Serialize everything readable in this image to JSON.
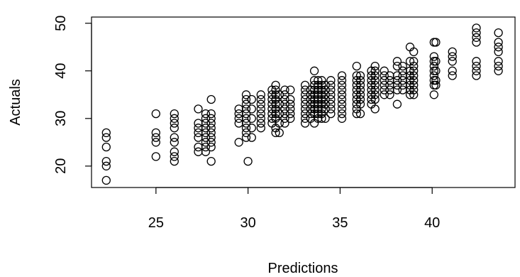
{
  "chart_data": {
    "type": "scatter",
    "title": "",
    "xlabel": "Predictions",
    "ylabel": "Actuals",
    "xlim": [
      21.5,
      44.5
    ],
    "ylim": [
      15.5,
      51.3
    ],
    "x_ticks": [
      25,
      30,
      35,
      40
    ],
    "y_ticks": [
      20,
      30,
      40,
      50
    ],
    "grid": false,
    "marker": "open-circle",
    "colors": {
      "points": "#000000",
      "axes": "#000000",
      "background": "#ffffff"
    },
    "series": [
      {
        "points": [
          [
            22.3,
            17
          ],
          [
            22.3,
            20
          ],
          [
            22.3,
            21
          ],
          [
            22.3,
            24
          ],
          [
            22.3,
            26
          ],
          [
            22.3,
            27
          ],
          [
            25,
            22
          ],
          [
            25,
            25
          ],
          [
            25,
            26
          ],
          [
            25,
            27
          ],
          [
            25,
            31
          ],
          [
            26,
            21
          ],
          [
            26,
            22
          ],
          [
            26,
            23
          ],
          [
            26,
            25
          ],
          [
            26,
            26
          ],
          [
            26,
            28
          ],
          [
            26,
            29
          ],
          [
            26,
            30
          ],
          [
            26,
            31
          ],
          [
            27.3,
            23
          ],
          [
            27.3,
            24
          ],
          [
            27.3,
            26
          ],
          [
            27.3,
            27
          ],
          [
            27.3,
            28
          ],
          [
            27.3,
            29
          ],
          [
            27.3,
            32
          ],
          [
            27.7,
            23
          ],
          [
            27.7,
            24
          ],
          [
            27.7,
            25
          ],
          [
            27.7,
            26
          ],
          [
            27.7,
            27
          ],
          [
            27.7,
            28
          ],
          [
            27.7,
            29
          ],
          [
            27.7,
            30
          ],
          [
            27.7,
            31
          ],
          [
            28,
            21
          ],
          [
            28,
            24
          ],
          [
            28,
            25
          ],
          [
            28,
            26
          ],
          [
            28,
            27
          ],
          [
            28,
            28
          ],
          [
            28,
            29
          ],
          [
            28,
            30
          ],
          [
            28,
            31
          ],
          [
            28,
            34
          ],
          [
            29.5,
            25
          ],
          [
            29.5,
            29
          ],
          [
            29.5,
            30
          ],
          [
            29.5,
            31
          ],
          [
            29.5,
            32
          ],
          [
            29.9,
            26
          ],
          [
            29.9,
            27
          ],
          [
            29.9,
            28
          ],
          [
            29.9,
            29
          ],
          [
            29.9,
            30
          ],
          [
            29.9,
            31
          ],
          [
            29.9,
            32
          ],
          [
            29.9,
            33
          ],
          [
            29.9,
            34
          ],
          [
            29.9,
            35
          ],
          [
            30,
            21
          ],
          [
            30.2,
            26
          ],
          [
            30.2,
            28
          ],
          [
            30.2,
            30
          ],
          [
            30.2,
            32
          ],
          [
            30.2,
            34
          ],
          [
            30.7,
            28
          ],
          [
            30.7,
            29
          ],
          [
            30.7,
            30
          ],
          [
            30.7,
            31
          ],
          [
            30.7,
            32
          ],
          [
            30.7,
            33
          ],
          [
            30.7,
            34
          ],
          [
            30.7,
            35
          ],
          [
            31.3,
            29
          ],
          [
            31.3,
            30
          ],
          [
            31.3,
            31
          ],
          [
            31.3,
            32
          ],
          [
            31.3,
            33
          ],
          [
            31.3,
            34
          ],
          [
            31.3,
            35
          ],
          [
            31.3,
            36
          ],
          [
            31.5,
            27
          ],
          [
            31.5,
            28
          ],
          [
            31.5,
            30
          ],
          [
            31.5,
            31
          ],
          [
            31.5,
            32
          ],
          [
            31.5,
            33
          ],
          [
            31.5,
            34
          ],
          [
            31.5,
            35
          ],
          [
            31.5,
            36
          ],
          [
            31.5,
            37
          ],
          [
            31.7,
            27
          ],
          [
            31.7,
            29
          ],
          [
            31.7,
            31
          ],
          [
            31.7,
            33
          ],
          [
            31.7,
            35
          ],
          [
            32,
            29
          ],
          [
            32,
            30
          ],
          [
            32,
            31
          ],
          [
            32,
            32
          ],
          [
            32,
            33
          ],
          [
            32,
            34
          ],
          [
            32,
            35
          ],
          [
            32,
            36
          ],
          [
            32.3,
            30
          ],
          [
            32.3,
            31
          ],
          [
            32.3,
            32
          ],
          [
            32.3,
            33
          ],
          [
            32.3,
            34
          ],
          [
            32.3,
            36
          ],
          [
            33.1,
            29
          ],
          [
            33.1,
            30
          ],
          [
            33.1,
            31
          ],
          [
            33.1,
            32
          ],
          [
            33.1,
            33
          ],
          [
            33.1,
            34
          ],
          [
            33.1,
            35
          ],
          [
            33.1,
            36
          ],
          [
            33.1,
            37
          ],
          [
            33.4,
            30
          ],
          [
            33.4,
            31
          ],
          [
            33.4,
            32
          ],
          [
            33.4,
            33
          ],
          [
            33.4,
            34
          ],
          [
            33.4,
            35
          ],
          [
            33.4,
            36
          ],
          [
            33.6,
            29
          ],
          [
            33.6,
            31
          ],
          [
            33.6,
            32
          ],
          [
            33.6,
            33
          ],
          [
            33.6,
            34
          ],
          [
            33.6,
            35
          ],
          [
            33.6,
            36
          ],
          [
            33.6,
            37
          ],
          [
            33.6,
            38
          ],
          [
            33.6,
            40
          ],
          [
            33.8,
            30
          ],
          [
            33.8,
            31
          ],
          [
            33.8,
            32
          ],
          [
            33.8,
            33
          ],
          [
            33.8,
            34
          ],
          [
            33.8,
            35
          ],
          [
            33.8,
            36
          ],
          [
            33.8,
            37
          ],
          [
            33.8,
            38
          ],
          [
            34,
            30
          ],
          [
            34,
            31
          ],
          [
            34,
            32
          ],
          [
            34,
            33
          ],
          [
            34,
            34
          ],
          [
            34,
            35
          ],
          [
            34,
            36
          ],
          [
            34,
            37
          ],
          [
            34,
            38
          ],
          [
            34.2,
            30
          ],
          [
            34.2,
            32
          ],
          [
            34.2,
            33
          ],
          [
            34.2,
            34
          ],
          [
            34.2,
            35
          ],
          [
            34.2,
            36
          ],
          [
            34.2,
            37
          ],
          [
            34.5,
            31
          ],
          [
            34.5,
            32
          ],
          [
            34.5,
            33
          ],
          [
            34.5,
            34
          ],
          [
            34.5,
            35
          ],
          [
            34.5,
            36
          ],
          [
            34.5,
            37
          ],
          [
            34.5,
            38
          ],
          [
            35.1,
            30
          ],
          [
            35.1,
            31
          ],
          [
            35.1,
            32
          ],
          [
            35.1,
            33
          ],
          [
            35.1,
            34
          ],
          [
            35.1,
            35
          ],
          [
            35.1,
            36
          ],
          [
            35.1,
            37
          ],
          [
            35.1,
            38
          ],
          [
            35.1,
            39
          ],
          [
            35.9,
            31
          ],
          [
            35.9,
            32
          ],
          [
            35.9,
            33
          ],
          [
            35.9,
            34
          ],
          [
            35.9,
            35
          ],
          [
            35.9,
            36
          ],
          [
            35.9,
            37
          ],
          [
            35.9,
            38
          ],
          [
            35.9,
            39
          ],
          [
            35.9,
            41
          ],
          [
            36.1,
            31
          ],
          [
            36.1,
            33
          ],
          [
            36.1,
            34
          ],
          [
            36.1,
            35
          ],
          [
            36.1,
            36
          ],
          [
            36.1,
            37
          ],
          [
            36.1,
            38
          ],
          [
            36.1,
            39
          ],
          [
            36.7,
            33
          ],
          [
            36.7,
            34
          ],
          [
            36.7,
            35
          ],
          [
            36.7,
            36
          ],
          [
            36.7,
            37
          ],
          [
            36.7,
            38
          ],
          [
            36.7,
            39
          ],
          [
            36.7,
            40
          ],
          [
            36.9,
            32
          ],
          [
            36.9,
            34
          ],
          [
            36.9,
            35
          ],
          [
            36.9,
            36
          ],
          [
            36.9,
            37
          ],
          [
            36.9,
            38
          ],
          [
            36.9,
            39
          ],
          [
            36.9,
            40
          ],
          [
            36.9,
            41
          ],
          [
            37.4,
            35
          ],
          [
            37.4,
            36
          ],
          [
            37.4,
            37
          ],
          [
            37.4,
            38
          ],
          [
            37.4,
            39
          ],
          [
            37.4,
            40
          ],
          [
            37.7,
            35
          ],
          [
            37.7,
            36
          ],
          [
            37.7,
            37
          ],
          [
            37.7,
            38
          ],
          [
            37.7,
            39
          ],
          [
            38.1,
            33
          ],
          [
            38.1,
            36
          ],
          [
            38.1,
            37
          ],
          [
            38.1,
            38
          ],
          [
            38.1,
            39
          ],
          [
            38.1,
            41
          ],
          [
            38.1,
            42
          ],
          [
            38.4,
            36
          ],
          [
            38.4,
            37
          ],
          [
            38.4,
            38
          ],
          [
            38.4,
            39
          ],
          [
            38.4,
            40
          ],
          [
            38.4,
            41
          ],
          [
            38.8,
            35
          ],
          [
            38.8,
            36
          ],
          [
            38.8,
            37
          ],
          [
            38.8,
            38
          ],
          [
            38.8,
            39
          ],
          [
            38.8,
            40
          ],
          [
            38.8,
            42
          ],
          [
            38.8,
            45
          ],
          [
            39,
            35
          ],
          [
            39,
            36
          ],
          [
            39,
            37
          ],
          [
            39,
            38
          ],
          [
            39,
            39
          ],
          [
            39,
            40
          ],
          [
            39,
            41
          ],
          [
            39,
            42
          ],
          [
            39,
            44
          ],
          [
            40.1,
            35
          ],
          [
            40.1,
            37
          ],
          [
            40.1,
            38
          ],
          [
            40.1,
            39
          ],
          [
            40.1,
            40
          ],
          [
            40.1,
            41
          ],
          [
            40.1,
            42
          ],
          [
            40.1,
            43
          ],
          [
            40.1,
            46
          ],
          [
            40.2,
            37
          ],
          [
            40.2,
            38
          ],
          [
            40.2,
            40
          ],
          [
            40.2,
            42
          ],
          [
            40.2,
            46
          ],
          [
            41.1,
            39
          ],
          [
            41.1,
            40
          ],
          [
            41.1,
            42
          ],
          [
            41.1,
            43
          ],
          [
            41.1,
            44
          ],
          [
            42.4,
            39
          ],
          [
            42.4,
            40
          ],
          [
            42.4,
            41
          ],
          [
            42.4,
            42
          ],
          [
            42.4,
            46
          ],
          [
            42.4,
            47
          ],
          [
            42.4,
            48
          ],
          [
            42.4,
            49
          ],
          [
            43.6,
            40
          ],
          [
            43.6,
            41
          ],
          [
            43.6,
            42
          ],
          [
            43.6,
            44
          ],
          [
            43.6,
            45
          ],
          [
            43.6,
            46
          ],
          [
            43.6,
            48
          ]
        ]
      }
    ]
  }
}
